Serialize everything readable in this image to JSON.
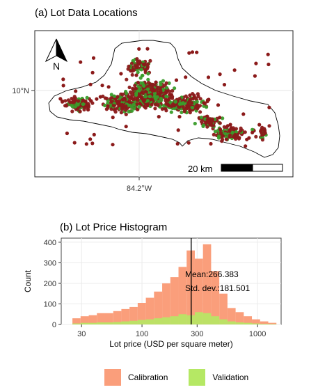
{
  "panel_a": {
    "title": "(a) Lot Data Locations",
    "lat_label": "10°N",
    "lon_label": "84.2°W",
    "north_label": "N",
    "scalebar_label": "20 km",
    "colors": {
      "calibration_points": "#8b1a1a",
      "validation_points": "#3a9d2b"
    }
  },
  "panel_b": {
    "title": "(b) Lot Price Histogram",
    "mean_label": "Mean:266.383",
    "sd_label": "Std. dev.:181.501"
  },
  "legend": {
    "items": [
      {
        "label": "Calibration",
        "color": "#fa9e7b"
      },
      {
        "label": "Validation",
        "color": "#b5e864"
      }
    ]
  },
  "chart_data": [
    {
      "type": "scatter",
      "title": "(a) Lot Data Locations",
      "x_ticks": [
        "84.2°W"
      ],
      "y_ticks": [
        "10°N"
      ],
      "series": [
        {
          "name": "Calibration"
        },
        {
          "name": "Validation"
        }
      ]
    },
    {
      "type": "bar",
      "title": "(b) Lot Price Histogram",
      "xlabel": "Lot price (USD per square meter)",
      "ylabel": "Count",
      "x_scale": "log",
      "xlim": [
        20,
        1600
      ],
      "ylim": [
        0,
        420
      ],
      "x_ticks": [
        30,
        100,
        300,
        1000
      ],
      "y_ticks": [
        0,
        100,
        200,
        300,
        400
      ],
      "bin_edges": [
        25,
        29.4,
        34.6,
        40.7,
        47.9,
        56.4,
        66.3,
        78.0,
        91.8,
        108.0,
        127.1,
        149.5,
        175.9,
        207.0,
        243.5,
        286.5,
        337.1,
        396.6,
        466.7,
        549.1,
        646.0,
        760.1,
        894.3,
        1052.2,
        1238.0,
        1456.6
      ],
      "series": [
        {
          "name": "Calibration",
          "values": [
            30,
            40,
            45,
            55,
            55,
            65,
            75,
            85,
            105,
            130,
            160,
            200,
            230,
            280,
            360,
            320,
            390,
            260,
            150,
            80,
            60,
            40,
            25,
            15,
            8
          ]
        },
        {
          "name": "Validation",
          "values": [
            5,
            8,
            8,
            10,
            10,
            12,
            15,
            18,
            22,
            25,
            30,
            35,
            40,
            50,
            45,
            60,
            55,
            40,
            25,
            15,
            10,
            8,
            5,
            3,
            2
          ]
        }
      ],
      "mean_line": 266.383,
      "annotations": [
        "Mean:266.383",
        "Std. dev.:181.501"
      ]
    }
  ]
}
